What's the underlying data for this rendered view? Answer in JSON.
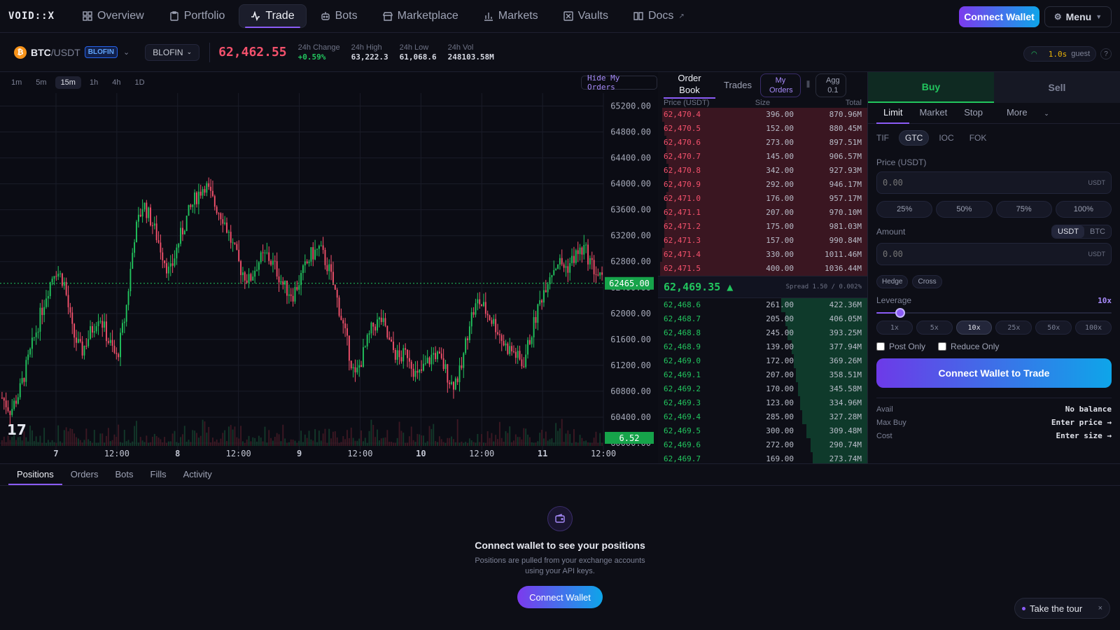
{
  "brand": "VOID::X",
  "nav": [
    {
      "label": "Overview",
      "icon": "grid-icon"
    },
    {
      "label": "Portfolio",
      "icon": "clipboard-icon"
    },
    {
      "label": "Trade",
      "icon": "activity-icon",
      "active": true
    },
    {
      "label": "Bots",
      "icon": "bot-icon"
    },
    {
      "label": "Marketplace",
      "icon": "store-icon"
    },
    {
      "label": "Markets",
      "icon": "bar-chart-icon"
    },
    {
      "label": "Vaults",
      "icon": "vault-icon"
    },
    {
      "label": "Docs",
      "icon": "book-icon"
    }
  ],
  "header": {
    "connect_wallet": "Connect Wallet",
    "menu": "Menu"
  },
  "ticker": {
    "coin_glyph": "₿",
    "base": "BTC",
    "quote": "/USDT",
    "exchange_badge": "BLOFIN",
    "exchange_select": "BLOFIN",
    "last_price": "62,462.55",
    "stats": [
      {
        "label": "24h Change",
        "value": "+0.59%",
        "positive": true
      },
      {
        "label": "24h High",
        "value": "63,222.3"
      },
      {
        "label": "24h Low",
        "value": "61,068.6"
      },
      {
        "label": "24h Vol",
        "value": "248103.58M"
      }
    ],
    "latency": "1.0s",
    "user": "guest",
    "help": "?"
  },
  "chart": {
    "timeframes": [
      "1m",
      "5m",
      "15m",
      "1h",
      "4h",
      "1D"
    ],
    "active_timeframe": "15m",
    "hide_orders_label": "Hide My Orders",
    "current_price_label": "62465.00",
    "volume_label": "6.52",
    "y_ticks": [
      "65200.00",
      "64800.00",
      "64400.00",
      "64000.00",
      "63600.00",
      "63200.00",
      "62800.00",
      "62400.00",
      "62000.00",
      "61600.00",
      "61200.00",
      "60800.00",
      "60400.00",
      "60000.00"
    ],
    "x_ticks": [
      "7",
      "12:00",
      "8",
      "12:00",
      "9",
      "12:00",
      "10",
      "12:00",
      "11",
      "12:00"
    ],
    "up_color": "#22c55e",
    "down_color": "#f4516c"
  },
  "chart_data": {
    "type": "candlestick",
    "ylim": [
      60000,
      65400
    ],
    "y_ticks": [
      65200,
      64800,
      64400,
      64000,
      63600,
      63200,
      62800,
      62400,
      62000,
      61600,
      61200,
      60800,
      60400,
      60000
    ],
    "current_price": 62465.0,
    "x_tick_labels": [
      "7",
      "12:00",
      "8",
      "12:00",
      "9",
      "12:00",
      "10",
      "12:00",
      "11",
      "12:00"
    ],
    "close_path": [
      60700,
      60500,
      60800,
      61300,
      61800,
      62300,
      62700,
      62500,
      61700,
      61400,
      61700,
      62000,
      61600,
      61300,
      62000,
      63200,
      63700,
      63400,
      63000,
      62600,
      63100,
      63500,
      63800,
      64000,
      63700,
      63500,
      63100,
      62700,
      62500,
      62800,
      62900,
      62700,
      62400,
      62300,
      62600,
      62900,
      63000,
      62700,
      62200,
      61600,
      61000,
      61400,
      61800,
      61900,
      61500,
      61300,
      61400,
      61000,
      61200,
      61400,
      61200,
      60900,
      61100,
      61900,
      62200,
      62000,
      61800,
      61500,
      61400,
      61200,
      61700,
      62200,
      62600,
      62800,
      62700,
      62900,
      63000,
      62700,
      62500
    ]
  },
  "orderbook": {
    "tabs": [
      "Order Book",
      "Trades"
    ],
    "my_orders": "My Orders",
    "agg_label": "Agg",
    "agg_value": "0.1",
    "headers": [
      "Price (USDT)",
      "Size",
      "Total"
    ],
    "asks": [
      {
        "price": "62,470.4",
        "size": "396.00",
        "total": "870.96M",
        "depth": 0.98
      },
      {
        "price": "62,470.5",
        "size": "152.00",
        "total": "880.45M",
        "depth": 0.97
      },
      {
        "price": "62,470.6",
        "size": "273.00",
        "total": "897.51M",
        "depth": 0.96
      },
      {
        "price": "62,470.7",
        "size": "145.00",
        "total": "906.57M",
        "depth": 0.96
      },
      {
        "price": "62,470.8",
        "size": "342.00",
        "total": "927.93M",
        "depth": 0.95
      },
      {
        "price": "62,470.9",
        "size": "292.00",
        "total": "946.17M",
        "depth": 0.95
      },
      {
        "price": "62,471.0",
        "size": "176.00",
        "total": "957.17M",
        "depth": 0.96
      },
      {
        "price": "62,471.1",
        "size": "207.00",
        "total": "970.10M",
        "depth": 0.96
      },
      {
        "price": "62,471.2",
        "size": "175.00",
        "total": "981.03M",
        "depth": 0.97
      },
      {
        "price": "62,471.3",
        "size": "157.00",
        "total": "990.84M",
        "depth": 0.97
      },
      {
        "price": "62,471.4",
        "size": "330.00",
        "total": "1011.46M",
        "depth": 0.98
      },
      {
        "price": "62,471.5",
        "size": "400.00",
        "total": "1036.44M",
        "depth": 0.99
      }
    ],
    "mid_price": "62,469.35 ▲",
    "spread": "Spread 1.50 / 0.002%",
    "bids": [
      {
        "price": "62,468.6",
        "size": "261.00",
        "total": "422.36M",
        "depth": 0.41
      },
      {
        "price": "62,468.7",
        "size": "205.00",
        "total": "406.05M",
        "depth": 0.39
      },
      {
        "price": "62,468.8",
        "size": "245.00",
        "total": "393.25M",
        "depth": 0.38
      },
      {
        "price": "62,468.9",
        "size": "139.00",
        "total": "377.94M",
        "depth": 0.36
      },
      {
        "price": "62,469.0",
        "size": "172.00",
        "total": "369.26M",
        "depth": 0.35
      },
      {
        "price": "62,469.1",
        "size": "207.00",
        "total": "358.51M",
        "depth": 0.34
      },
      {
        "price": "62,469.2",
        "size": "170.00",
        "total": "345.58M",
        "depth": 0.33
      },
      {
        "price": "62,469.3",
        "size": "123.00",
        "total": "334.96M",
        "depth": 0.32
      },
      {
        "price": "62,469.4",
        "size": "285.00",
        "total": "327.28M",
        "depth": 0.31
      },
      {
        "price": "62,469.5",
        "size": "300.00",
        "total": "309.48M",
        "depth": 0.29
      },
      {
        "price": "62,469.6",
        "size": "272.00",
        "total": "290.74M",
        "depth": 0.27
      },
      {
        "price": "62,469.7",
        "size": "169.00",
        "total": "273.74M",
        "depth": 0.26
      }
    ]
  },
  "order_form": {
    "buy": "Buy",
    "sell": "Sell",
    "types": [
      "Limit",
      "Market",
      "Stop",
      "More"
    ],
    "tif_label": "TIF",
    "tif_options": [
      "GTC",
      "IOC",
      "FOK"
    ],
    "price_label": "Price (USDT)",
    "price_placeholder": "0.00",
    "price_unit": "USDT",
    "percents": [
      "25%",
      "50%",
      "75%",
      "100%"
    ],
    "amount_label": "Amount",
    "amount_units": [
      "USDT",
      "BTC"
    ],
    "amount_placeholder": "0.00",
    "amount_unit": "USDT",
    "hedge": "Hedge",
    "cross": "Cross",
    "leverage_label": "Leverage",
    "leverage_value": "10x",
    "leverage_fraction": 0.1,
    "leverage_options": [
      "1x",
      "5x",
      "10x",
      "25x",
      "50x",
      "100x"
    ],
    "post_only": "Post Only",
    "reduce_only": "Reduce Only",
    "trade_button": "Connect Wallet to Trade",
    "summary": [
      {
        "k": "Avail",
        "v": "No balance"
      },
      {
        "k": "Max Buy",
        "v": "Enter price →"
      },
      {
        "k": "Cost",
        "v": "Enter size →"
      }
    ]
  },
  "bottom": {
    "tabs": [
      "Positions",
      "Orders",
      "Bots",
      "Fills",
      "Activity"
    ],
    "empty_title": "Connect wallet to see your positions",
    "empty_sub": "Positions are pulled from your exchange accounts using your API keys.",
    "empty_button": "Connect Wallet"
  },
  "tour": {
    "label": "Take the tour",
    "close": "×"
  }
}
